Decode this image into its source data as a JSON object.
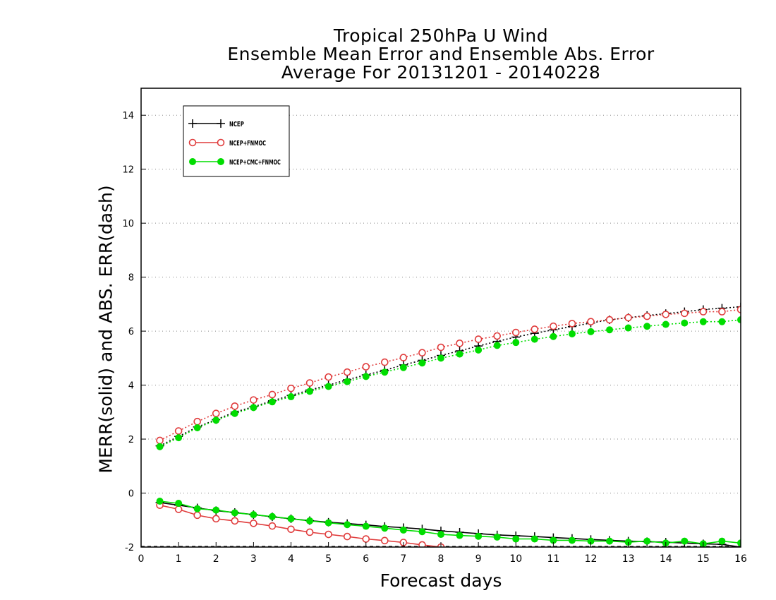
{
  "chart_data": {
    "type": "line",
    "title_lines": [
      "Tropical 250hPa U Wind",
      "Ensemble Mean Error and Ensemble Abs. Error",
      "Average For 20131201 - 20140228"
    ],
    "xlabel": "Forecast days",
    "ylabel": "MERR(solid) and ABS. ERR(dash)",
    "xlim": [
      0,
      16
    ],
    "ylim": [
      -2,
      15
    ],
    "x_ticks": [
      0,
      1,
      2,
      3,
      4,
      5,
      6,
      7,
      8,
      9,
      10,
      11,
      12,
      13,
      14,
      15,
      16
    ],
    "y_ticks": [
      -2,
      0,
      2,
      4,
      6,
      8,
      10,
      12,
      14
    ],
    "y_tick_labels": [
      "-2",
      "0",
      "2",
      "4",
      "6",
      "8",
      "10",
      "12",
      "14"
    ],
    "grid": "horizontal dotted",
    "legend_position": "top-left",
    "x": [
      0.5,
      1,
      1.5,
      2,
      2.5,
      3,
      3.5,
      4,
      4.5,
      5,
      5.5,
      6,
      6.5,
      7,
      7.5,
      8,
      8.5,
      9,
      9.5,
      10,
      10.5,
      11,
      11.5,
      12,
      12.5,
      13,
      13.5,
      14,
      14.5,
      15,
      15.5,
      16
    ],
    "series": [
      {
        "name": "NCEP",
        "color": "#000000",
        "marker": "plus",
        "merr": [
          -0.35,
          -0.45,
          -0.55,
          -0.65,
          -0.72,
          -0.8,
          -0.88,
          -0.95,
          -1.02,
          -1.08,
          -1.13,
          -1.18,
          -1.24,
          -1.28,
          -1.33,
          -1.4,
          -1.45,
          -1.5,
          -1.55,
          -1.58,
          -1.61,
          -1.65,
          -1.68,
          -1.72,
          -1.75,
          -1.78,
          -1.8,
          -1.82,
          -1.85,
          -1.88,
          -1.9,
          -2.0
        ],
        "abs_err": [
          1.75,
          2.1,
          2.45,
          2.72,
          3.0,
          3.2,
          3.42,
          3.62,
          3.82,
          4.0,
          4.2,
          4.38,
          4.55,
          4.75,
          4.92,
          5.1,
          5.27,
          5.45,
          5.62,
          5.78,
          5.92,
          6.05,
          6.17,
          6.3,
          6.42,
          6.5,
          6.58,
          6.65,
          6.72,
          6.8,
          6.85,
          6.9
        ]
      },
      {
        "name": "NCEP+FNMOC",
        "color": "#e03c3c",
        "marker": "open-circle",
        "merr": [
          -0.45,
          -0.6,
          -0.82,
          -0.95,
          -1.03,
          -1.12,
          -1.22,
          -1.34,
          -1.45,
          -1.53,
          -1.61,
          -1.7,
          -1.76,
          -1.83,
          -1.92,
          -2.0,
          -2.05
        ],
        "abs_err": [
          1.95,
          2.3,
          2.65,
          2.95,
          3.22,
          3.45,
          3.65,
          3.88,
          4.08,
          4.3,
          4.48,
          4.68,
          4.85,
          5.02,
          5.2,
          5.4,
          5.55,
          5.7,
          5.82,
          5.95,
          6.07,
          6.18,
          6.28,
          6.35,
          6.42,
          6.5,
          6.55,
          6.62,
          6.66,
          6.72,
          6.72,
          6.8
        ]
      },
      {
        "name": "NCEP+CMC+FNMOC",
        "color": "#00dd00",
        "marker": "filled-circle",
        "merr": [
          -0.3,
          -0.38,
          -0.58,
          -0.63,
          -0.73,
          -0.8,
          -0.87,
          -0.95,
          -1.03,
          -1.1,
          -1.17,
          -1.23,
          -1.3,
          -1.37,
          -1.43,
          -1.53,
          -1.57,
          -1.6,
          -1.63,
          -1.7,
          -1.7,
          -1.75,
          -1.75,
          -1.78,
          -1.78,
          -1.82,
          -1.78,
          -1.85,
          -1.78,
          -1.88,
          -1.78,
          -1.85
        ],
        "abs_err": [
          1.72,
          2.05,
          2.42,
          2.7,
          2.95,
          3.17,
          3.38,
          3.57,
          3.77,
          3.95,
          4.13,
          4.32,
          4.48,
          4.65,
          4.82,
          5.0,
          5.15,
          5.3,
          5.47,
          5.58,
          5.7,
          5.8,
          5.9,
          5.98,
          6.05,
          6.12,
          6.18,
          6.25,
          6.3,
          6.35,
          6.35,
          6.42
        ]
      }
    ]
  }
}
